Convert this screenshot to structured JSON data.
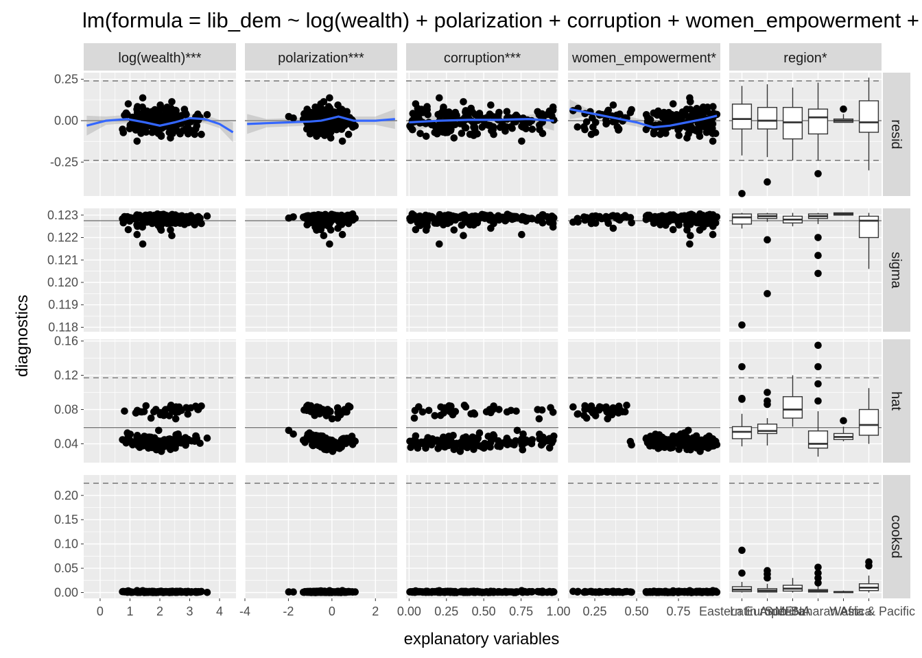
{
  "chart_data": {
    "type": "scatter",
    "title": "lm(formula = lib_dem ~ log(wealth) + polarization + corruption + women_empowerment + region)",
    "xlabel": "explanatory variables",
    "ylabel": "diagnostics",
    "columns": [
      {
        "key": "wealth",
        "label": "log(wealth)***",
        "kind": "numeric",
        "xlim": [
          -0.55,
          4.55
        ],
        "ticks": [
          0,
          1,
          2,
          3,
          4
        ],
        "tick_labels": [
          "0",
          "1",
          "2",
          "3",
          "4"
        ],
        "smooth": {
          "x": [
            -0.45,
            0.2,
            0.9,
            1.5,
            2.0,
            2.5,
            3.0,
            3.5,
            4.0,
            4.45
          ],
          "y": [
            -0.03,
            0.0,
            0.01,
            -0.01,
            -0.03,
            -0.01,
            0.015,
            0.01,
            -0.02,
            -0.07
          ]
        }
      },
      {
        "key": "polarization",
        "label": "polarization***",
        "kind": "numeric",
        "xlim": [
          -4.0,
          3.0
        ],
        "ticks": [
          -4,
          -2,
          0,
          2
        ],
        "tick_labels": [
          "-4",
          "-2",
          "0",
          "2"
        ],
        "smooth": {
          "x": [
            -3.9,
            -3.0,
            -2.0,
            -1.0,
            -0.5,
            0.0,
            0.3,
            1.0,
            2.0,
            2.9
          ],
          "y": [
            -0.02,
            -0.015,
            -0.01,
            -0.005,
            0.0,
            0.015,
            0.025,
            0.0,
            0.0,
            0.01
          ]
        }
      },
      {
        "key": "corruption",
        "label": "corruption***",
        "kind": "numeric",
        "xlim": [
          -0.02,
          1.0
        ],
        "ticks": [
          0.0,
          0.25,
          0.5,
          0.75,
          1.0
        ],
        "tick_labels": [
          "0.00",
          "0.25",
          "0.50",
          "0.75",
          "1.00"
        ],
        "smooth": {
          "x": [
            0.0,
            0.2,
            0.4,
            0.6,
            0.8,
            0.97
          ],
          "y": [
            -0.01,
            0.0,
            0.005,
            0.005,
            0.01,
            0.0
          ]
        }
      },
      {
        "key": "women",
        "label": "women_empowerment*",
        "kind": "numeric",
        "xlim": [
          0.09,
          1.0
        ],
        "ticks": [
          0.25,
          0.5,
          0.75
        ],
        "tick_labels": [
          "0.25",
          "0.50",
          "0.75"
        ],
        "smooth": {
          "x": [
            0.1,
            0.2,
            0.3,
            0.4,
            0.5,
            0.6,
            0.7,
            0.8,
            0.9,
            0.98
          ],
          "y": [
            0.07,
            0.05,
            0.03,
            0.01,
            -0.01,
            -0.04,
            -0.03,
            -0.01,
            0.01,
            0.03
          ]
        }
      },
      {
        "key": "region",
        "label": "region*",
        "kind": "categorical",
        "categories": [
          "Eastern Europe",
          "Latin America",
          "MENA",
          "Sub-Saharan Africa",
          "West",
          "Asia & Pacific"
        ],
        "tick_labels": [
          "Eastern Europe",
          "Latin America",
          "MENA",
          "Sub-Saharan Africa",
          "West",
          "Asia & Pacific"
        ]
      }
    ],
    "rows": [
      {
        "key": "resid",
        "label": "resid",
        "ylim": [
          -0.455,
          0.29
        ],
        "ticks": [
          -0.25,
          0.0,
          0.25
        ],
        "tick_labels": [
          "-0.25",
          "0.00",
          "0.25"
        ],
        "ref": [
          {
            "y": -0.24,
            "style": "dashed"
          },
          {
            "y": 0.0,
            "style": "solid"
          },
          {
            "y": 0.24,
            "style": "dashed"
          }
        ]
      },
      {
        "key": "sigma",
        "label": "sigma",
        "ylim": [
          0.1178,
          0.1233
        ],
        "ticks": [
          0.118,
          0.119,
          0.12,
          0.121,
          0.122,
          0.123
        ],
        "tick_labels": [
          "0.118",
          "0.119",
          "0.120",
          "0.121",
          "0.122",
          "0.123"
        ],
        "ref": [
          {
            "y": 0.12275,
            "style": "solid"
          }
        ]
      },
      {
        "key": "hat",
        "label": "hat",
        "ylim": [
          0.018,
          0.162
        ],
        "ticks": [
          0.04,
          0.08,
          0.12,
          0.16
        ],
        "tick_labels": [
          "0.04",
          "0.08",
          "0.12",
          "0.16"
        ],
        "ref": [
          {
            "y": 0.059,
            "style": "solid"
          },
          {
            "y": 0.117,
            "style": "dashed"
          }
        ]
      },
      {
        "key": "cooksd",
        "label": "cooksd",
        "ylim": [
          -0.012,
          0.242
        ],
        "ticks": [
          0.0,
          0.05,
          0.1,
          0.15,
          0.2
        ],
        "tick_labels": [
          "0.00",
          "0.05",
          "0.10",
          "0.15",
          "0.20"
        ],
        "ref": [
          {
            "y": 0.225,
            "style": "dashed"
          }
        ]
      }
    ],
    "n_points": 170,
    "boxplots": {
      "resid": [
        {
          "q1": -0.05,
          "median": 0.01,
          "q3": 0.1,
          "wlo": -0.21,
          "whi": 0.21,
          "outliers": [
            -0.44
          ]
        },
        {
          "q1": -0.05,
          "median": 0.0,
          "q3": 0.08,
          "wlo": -0.22,
          "whi": 0.22,
          "outliers": [
            -0.37
          ]
        },
        {
          "q1": -0.11,
          "median": -0.01,
          "q3": 0.08,
          "wlo": -0.24,
          "whi": 0.2,
          "outliers": []
        },
        {
          "q1": -0.08,
          "median": 0.02,
          "q3": 0.07,
          "wlo": -0.24,
          "whi": 0.23,
          "outliers": [
            -0.32
          ]
        },
        {
          "q1": -0.01,
          "median": 0.0,
          "q3": 0.01,
          "wlo": -0.01,
          "whi": 0.04,
          "outliers": [
            0.07
          ]
        },
        {
          "q1": -0.07,
          "median": -0.01,
          "q3": 0.12,
          "wlo": -0.3,
          "whi": 0.26,
          "outliers": []
        }
      ],
      "sigma": [
        {
          "q1": 0.1226,
          "median": 0.1229,
          "q3": 0.12305,
          "wlo": 0.1224,
          "whi": 0.1231,
          "outliers": [
            0.1181
          ]
        },
        {
          "q1": 0.12285,
          "median": 0.12295,
          "q3": 0.12305,
          "wlo": 0.1227,
          "whi": 0.1231,
          "outliers": [
            0.1195,
            0.1219
          ]
        },
        {
          "q1": 0.12265,
          "median": 0.1228,
          "q3": 0.12295,
          "wlo": 0.1225,
          "whi": 0.1231,
          "outliers": []
        },
        {
          "q1": 0.12285,
          "median": 0.12295,
          "q3": 0.12305,
          "wlo": 0.1226,
          "whi": 0.1231,
          "outliers": [
            0.1204,
            0.1212,
            0.122
          ]
        },
        {
          "q1": 0.123,
          "median": 0.12305,
          "q3": 0.1231,
          "wlo": 0.123,
          "whi": 0.1231,
          "outliers": []
        },
        {
          "q1": 0.122,
          "median": 0.12275,
          "q3": 0.12295,
          "wlo": 0.1206,
          "whi": 0.1231,
          "outliers": []
        }
      ],
      "hat": [
        {
          "q1": 0.046,
          "median": 0.054,
          "q3": 0.06,
          "wlo": 0.037,
          "whi": 0.075,
          "outliers": [
            0.093,
            0.092,
            0.13
          ]
        },
        {
          "q1": 0.052,
          "median": 0.055,
          "q3": 0.063,
          "wlo": 0.038,
          "whi": 0.07,
          "outliers": [
            0.086,
            0.09,
            0.1
          ]
        },
        {
          "q1": 0.07,
          "median": 0.08,
          "q3": 0.095,
          "wlo": 0.06,
          "whi": 0.12,
          "outliers": []
        },
        {
          "q1": 0.035,
          "median": 0.04,
          "q3": 0.055,
          "wlo": 0.025,
          "whi": 0.078,
          "outliers": [
            0.09,
            0.11,
            0.13,
            0.155
          ]
        },
        {
          "q1": 0.045,
          "median": 0.048,
          "q3": 0.052,
          "wlo": 0.043,
          "whi": 0.06,
          "outliers": [
            0.067
          ]
        },
        {
          "q1": 0.05,
          "median": 0.062,
          "q3": 0.08,
          "wlo": 0.04,
          "whi": 0.105,
          "outliers": []
        }
      ],
      "cooksd": [
        {
          "q1": 0.002,
          "median": 0.006,
          "q3": 0.012,
          "wlo": 0.0,
          "whi": 0.022,
          "outliers": [
            0.04,
            0.087
          ]
        },
        {
          "q1": 0.001,
          "median": 0.004,
          "q3": 0.008,
          "wlo": 0.0,
          "whi": 0.018,
          "outliers": [
            0.03,
            0.038,
            0.045
          ]
        },
        {
          "q1": 0.003,
          "median": 0.008,
          "q3": 0.015,
          "wlo": 0.0,
          "whi": 0.03,
          "outliers": []
        },
        {
          "q1": 0.001,
          "median": 0.003,
          "q3": 0.006,
          "wlo": 0.0,
          "whi": 0.014,
          "outliers": [
            0.02,
            0.03,
            0.04,
            0.052
          ]
        },
        {
          "q1": 0.0,
          "median": 0.001,
          "q3": 0.002,
          "wlo": 0.0,
          "whi": 0.004,
          "outliers": []
        },
        {
          "q1": 0.004,
          "median": 0.01,
          "q3": 0.018,
          "wlo": 0.0,
          "whi": 0.035,
          "outliers": [
            0.055,
            0.063
          ]
        }
      ]
    }
  }
}
